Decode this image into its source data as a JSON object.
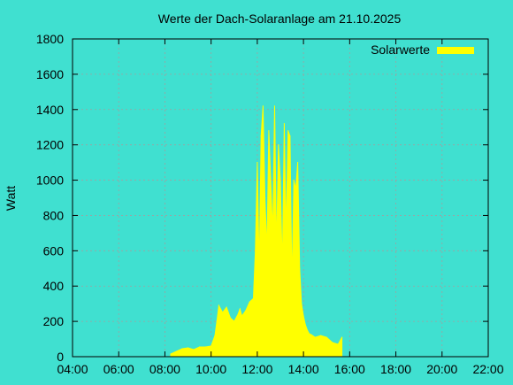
{
  "chart_data": {
    "type": "area",
    "title": "Werte der Dach-Solaranlage am 21.10.2025",
    "ylabel": "Watt",
    "xlabel": "",
    "xlim": [
      "04:00",
      "22:00"
    ],
    "ylim": [
      0,
      1800
    ],
    "x_ticks": [
      "04:00",
      "06:00",
      "08:00",
      "10:00",
      "12:00",
      "14:00",
      "16:00",
      "18:00",
      "20:00",
      "22:00"
    ],
    "y_ticks": [
      "0",
      "200",
      "400",
      "600",
      "800",
      "1000",
      "1200",
      "1400",
      "1600",
      "1800"
    ],
    "grid": true,
    "legend_position": "top-right",
    "series": [
      {
        "name": "Solarwerte",
        "color": "#ffff00",
        "x": [
          "08:15",
          "08:30",
          "08:45",
          "09:00",
          "09:15",
          "09:30",
          "09:45",
          "10:00",
          "10:10",
          "10:15",
          "10:20",
          "10:30",
          "10:40",
          "10:50",
          "11:00",
          "11:10",
          "11:15",
          "11:20",
          "11:30",
          "11:40",
          "11:50",
          "11:55",
          "12:00",
          "12:05",
          "12:10",
          "12:15",
          "12:20",
          "12:25",
          "12:30",
          "12:35",
          "12:40",
          "12:45",
          "12:50",
          "12:55",
          "13:00",
          "13:05",
          "13:10",
          "13:15",
          "13:20",
          "13:25",
          "13:30",
          "13:35",
          "13:40",
          "13:45",
          "13:50",
          "13:55",
          "14:00",
          "14:05",
          "14:10",
          "14:15",
          "14:20",
          "14:30",
          "14:45",
          "15:00",
          "15:15",
          "15:30",
          "15:40"
        ],
        "values": [
          15,
          30,
          45,
          50,
          40,
          55,
          55,
          60,
          120,
          200,
          290,
          250,
          280,
          220,
          200,
          240,
          270,
          230,
          260,
          310,
          330,
          600,
          1100,
          500,
          1250,
          1420,
          900,
          600,
          1280,
          1000,
          700,
          1420,
          600,
          1200,
          1000,
          500,
          1320,
          700,
          1280,
          1250,
          400,
          1000,
          950,
          1100,
          500,
          300,
          230,
          180,
          150,
          130,
          125,
          110,
          120,
          110,
          80,
          70,
          110
        ]
      }
    ]
  }
}
